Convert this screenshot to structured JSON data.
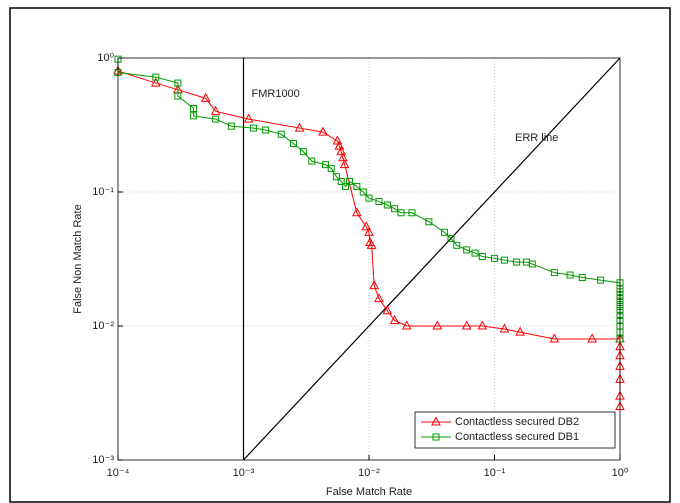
{
  "chart_data": {
    "type": "line",
    "xlabel": "False Match Rate",
    "ylabel": "False Non Match Rate",
    "xscale": "log",
    "yscale": "log",
    "xlim": [
      0.0001,
      1
    ],
    "ylim": [
      0.001,
      1
    ],
    "xticks": [
      {
        "value": 0.0001,
        "label": "10⁻⁴"
      },
      {
        "value": 0.001,
        "label": "10⁻³"
      },
      {
        "value": 0.01,
        "label": "10⁻²"
      },
      {
        "value": 0.1,
        "label": "10⁻¹"
      },
      {
        "value": 1,
        "label": "10⁰"
      }
    ],
    "yticks": [
      {
        "value": 0.001,
        "label": "10⁻³"
      },
      {
        "value": 0.01,
        "label": "10⁻²"
      },
      {
        "value": 0.1,
        "label": "10⁻¹"
      },
      {
        "value": 1,
        "label": "10⁰"
      }
    ],
    "grid": true,
    "legend": "lower right",
    "vlines": [
      {
        "x": 0.001,
        "label": "FMR1000"
      }
    ],
    "diagonal": {
      "label": "ERR line"
    },
    "series": [
      {
        "name": "Contactless secured DB2",
        "color": "#ff0000",
        "marker": "triangle",
        "x": [
          0.0001,
          0.0002,
          0.0003,
          0.0005,
          0.0006,
          0.0011,
          0.0028,
          0.0043,
          0.0056,
          0.0058,
          0.006,
          0.0062,
          0.0064,
          0.008,
          0.0095,
          0.01,
          0.0102,
          0.0105,
          0.011,
          0.012,
          0.014,
          0.016,
          0.02,
          0.035,
          0.06,
          0.08,
          0.12,
          0.16,
          0.3,
          0.6,
          1,
          1,
          1,
          1,
          1,
          1,
          1
        ],
        "values": [
          0.8,
          0.65,
          0.58,
          0.5,
          0.4,
          0.35,
          0.3,
          0.28,
          0.24,
          0.22,
          0.2,
          0.18,
          0.16,
          0.07,
          0.055,
          0.05,
          0.042,
          0.04,
          0.02,
          0.016,
          0.013,
          0.011,
          0.01,
          0.01,
          0.01,
          0.01,
          0.0095,
          0.009,
          0.008,
          0.008,
          0.008,
          0.007,
          0.006,
          0.005,
          0.004,
          0.003,
          0.0025
        ]
      },
      {
        "name": "Contactless secured DB1",
        "color": "#009900",
        "marker": "square",
        "x": [
          0.0001,
          0.0001,
          0.0002,
          0.0003,
          0.0003,
          0.0004,
          0.0004,
          0.0006,
          0.0008,
          0.0012,
          0.0015,
          0.002,
          0.0025,
          0.003,
          0.0035,
          0.0045,
          0.005,
          0.0055,
          0.006,
          0.0065,
          0.007,
          0.008,
          0.009,
          0.01,
          0.012,
          0.014,
          0.016,
          0.018,
          0.022,
          0.03,
          0.04,
          0.045,
          0.05,
          0.06,
          0.07,
          0.08,
          0.1,
          0.12,
          0.15,
          0.18,
          0.2,
          0.3,
          0.4,
          0.5,
          0.7,
          1,
          1,
          1,
          1,
          1,
          1,
          1,
          1,
          1,
          1,
          1,
          1,
          1
        ],
        "values": [
          0.98,
          0.78,
          0.72,
          0.65,
          0.52,
          0.42,
          0.37,
          0.35,
          0.31,
          0.3,
          0.29,
          0.27,
          0.23,
          0.2,
          0.17,
          0.16,
          0.15,
          0.13,
          0.12,
          0.11,
          0.12,
          0.11,
          0.1,
          0.09,
          0.085,
          0.08,
          0.075,
          0.07,
          0.07,
          0.06,
          0.05,
          0.045,
          0.04,
          0.037,
          0.035,
          0.033,
          0.032,
          0.031,
          0.03,
          0.03,
          0.029,
          0.025,
          0.024,
          0.023,
          0.022,
          0.021,
          0.019,
          0.018,
          0.017,
          0.016,
          0.015,
          0.014,
          0.013,
          0.012,
          0.011,
          0.01,
          0.009,
          0.008
        ]
      }
    ]
  }
}
